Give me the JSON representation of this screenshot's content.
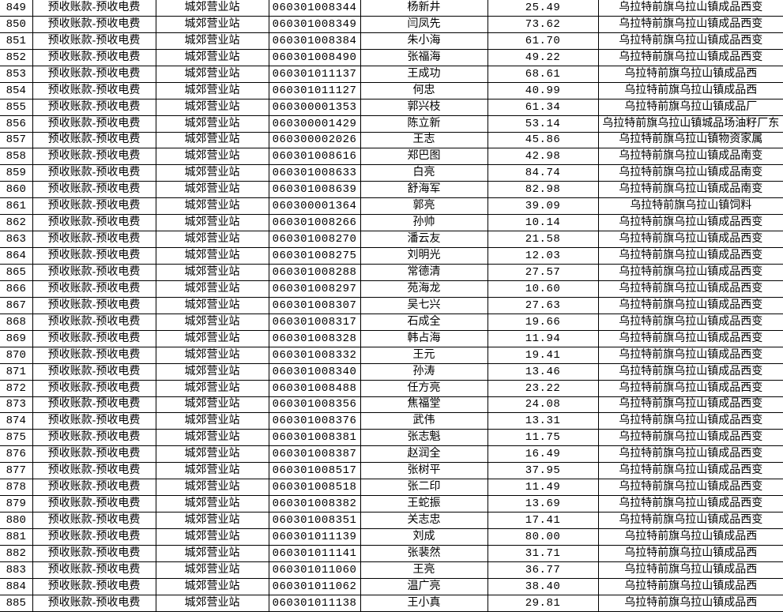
{
  "colors": {
    "background": "#ffffff",
    "grid_line": "#000000",
    "text_black": "#000000",
    "text_red": "#c00000"
  },
  "table": {
    "shared": {
      "account_title": "预收账款-预收电费",
      "station": "城郊营业站"
    },
    "rows": [
      {
        "row_no": "849",
        "customer_no": "060301008344",
        "name": "杨新井",
        "amount": "25.49",
        "address": "乌拉特前旗乌拉山镇成品西变"
      },
      {
        "row_no": "850",
        "customer_no": "060301008349",
        "name": "闫凤先",
        "amount": "73.62",
        "address": "乌拉特前旗乌拉山镇成品西变"
      },
      {
        "row_no": "851",
        "customer_no": "060301008384",
        "name": "朱小海",
        "amount": "61.70",
        "address": "乌拉特前旗乌拉山镇成品西变"
      },
      {
        "row_no": "852",
        "customer_no": "060301008490",
        "name": "张福海",
        "amount": "49.22",
        "address": "乌拉特前旗乌拉山镇成品西变"
      },
      {
        "row_no": "853",
        "customer_no": "060301011137",
        "name": "王成功",
        "amount": "68.61",
        "address": "乌拉特前旗乌拉山镇成品西"
      },
      {
        "row_no": "854",
        "customer_no": "060301011127",
        "name": "何忠",
        "amount": "40.99",
        "address": "乌拉特前旗乌拉山镇成品西"
      },
      {
        "row_no": "855",
        "customer_no": "060300001353",
        "name": "郭兴枝",
        "amount": "61.34",
        "address": "乌拉特前旗乌拉山镇成品厂"
      },
      {
        "row_no": "856",
        "customer_no": "060300001429",
        "name": "陈立新",
        "amount": "53.14",
        "address": "乌拉特前旗乌拉山镇城品场油籽厂东"
      },
      {
        "row_no": "857",
        "customer_no": "060300002026",
        "name": "王志",
        "amount": "45.86",
        "address": "乌拉特前旗乌拉山镇物资家属"
      },
      {
        "row_no": "858",
        "customer_no": "060301008616",
        "name": "郑巴图",
        "amount": "42.98",
        "address": "乌拉特前旗乌拉山镇成品南变"
      },
      {
        "row_no": "859",
        "customer_no": "060301008633",
        "name": "白亮",
        "amount": "84.74",
        "address": "乌拉特前旗乌拉山镇成品南变"
      },
      {
        "row_no": "860",
        "customer_no": "060301008639",
        "name": "舒海军",
        "amount": "82.98",
        "address": "乌拉特前旗乌拉山镇成品南变"
      },
      {
        "row_no": "861",
        "customer_no": "060300001364",
        "name": "郭亮",
        "amount": "39.09",
        "address": "乌拉特前旗乌拉山镇饲料"
      },
      {
        "row_no": "862",
        "customer_no": "060301008266",
        "name": "孙帅",
        "amount": "10.14",
        "address": "乌拉特前旗乌拉山镇成品西变"
      },
      {
        "row_no": "863",
        "customer_no": "060301008270",
        "name": "潘云友",
        "amount": "21.58",
        "address": "乌拉特前旗乌拉山镇成品西变"
      },
      {
        "row_no": "864",
        "customer_no": "060301008275",
        "name": "刘明光",
        "amount": "12.03",
        "address": "乌拉特前旗乌拉山镇成品西变"
      },
      {
        "row_no": "865",
        "customer_no": "060301008288",
        "name": "常德清",
        "amount": "27.57",
        "address": "乌拉特前旗乌拉山镇成品西变"
      },
      {
        "row_no": "866",
        "customer_no": "060301008297",
        "name": "苑海龙",
        "amount": "10.60",
        "address": "乌拉特前旗乌拉山镇成品西变"
      },
      {
        "row_no": "867",
        "customer_no": "060301008307",
        "name": "吴七兴",
        "amount": "27.63",
        "address": "乌拉特前旗乌拉山镇成品西变"
      },
      {
        "row_no": "868",
        "customer_no": "060301008317",
        "name": "石成全",
        "amount": "19.66",
        "address": "乌拉特前旗乌拉山镇成品西变"
      },
      {
        "row_no": "869",
        "customer_no": "060301008328",
        "name": "韩占海",
        "amount": "11.94",
        "address": "乌拉特前旗乌拉山镇成品西变"
      },
      {
        "row_no": "870",
        "customer_no": "060301008332",
        "name": "王元",
        "amount": "19.41",
        "address": "乌拉特前旗乌拉山镇成品西变"
      },
      {
        "row_no": "871",
        "customer_no": "060301008340",
        "name": "孙涛",
        "amount": "13.46",
        "address": "乌拉特前旗乌拉山镇成品西变"
      },
      {
        "row_no": "872",
        "customer_no": "060301008488",
        "name": "任方亮",
        "amount": "23.22",
        "address": "乌拉特前旗乌拉山镇成品西变"
      },
      {
        "row_no": "873",
        "customer_no": "060301008356",
        "name": "焦福堂",
        "amount": "24.08",
        "address": "乌拉特前旗乌拉山镇成品西变"
      },
      {
        "row_no": "874",
        "customer_no": "060301008376",
        "name": "武伟",
        "amount": "13.31",
        "address": "乌拉特前旗乌拉山镇成品西变"
      },
      {
        "row_no": "875",
        "customer_no": "060301008381",
        "name": "张志魁",
        "amount": "11.75",
        "address": "乌拉特前旗乌拉山镇成品西变"
      },
      {
        "row_no": "876",
        "customer_no": "060301008387",
        "name": "赵润全",
        "amount": "16.49",
        "address": "乌拉特前旗乌拉山镇成品西变"
      },
      {
        "row_no": "877",
        "customer_no": "060301008517",
        "name": "张树平",
        "amount": "37.95",
        "address": "乌拉特前旗乌拉山镇成品西变"
      },
      {
        "row_no": "878",
        "customer_no": "060301008518",
        "name": "张二印",
        "amount": "11.49",
        "address": "乌拉特前旗乌拉山镇成品西变"
      },
      {
        "row_no": "879",
        "customer_no": "060301008382",
        "name": "王蛇振",
        "amount": "13.69",
        "address": "乌拉特前旗乌拉山镇成品西变"
      },
      {
        "row_no": "880",
        "customer_no": "060301008351",
        "name": "关志忠",
        "amount": "17.41",
        "address": "乌拉特前旗乌拉山镇成品西变"
      },
      {
        "row_no": "881",
        "customer_no": "060301011139",
        "name": "刘成",
        "amount": "80.00",
        "address": "乌拉特前旗乌拉山镇成品西"
      },
      {
        "row_no": "882",
        "customer_no": "060301011141",
        "name": "张裴然",
        "amount": "31.71",
        "address": "乌拉特前旗乌拉山镇成品西"
      },
      {
        "row_no": "883",
        "customer_no": "060301011060",
        "name": "王亮",
        "amount": "36.77",
        "address": "乌拉特前旗乌拉山镇成品西"
      },
      {
        "row_no": "884",
        "customer_no": "060301011062",
        "name": "温广亮",
        "amount": "38.40",
        "address": "乌拉特前旗乌拉山镇成品西"
      },
      {
        "row_no": "885",
        "customer_no": "060301011138",
        "name": "王小真",
        "amount": "29.81",
        "address": "乌拉特前旗乌拉山镇成品西"
      }
    ]
  }
}
